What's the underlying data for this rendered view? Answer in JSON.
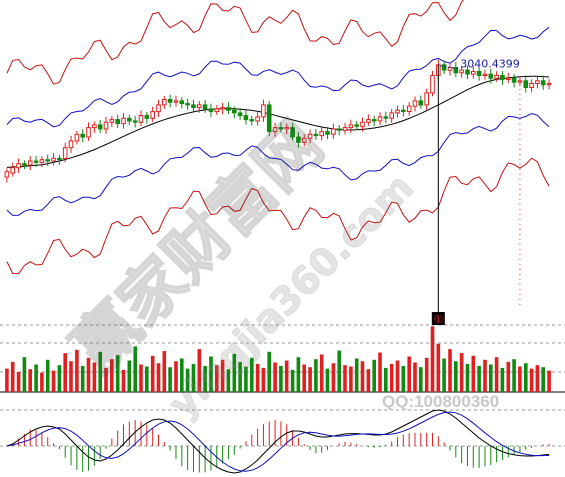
{
  "chart_data": {
    "type": "candlestick",
    "annotation": {
      "price_label": "3040.4399",
      "marker": "①"
    },
    "watermark": {
      "brand": "赢家财富网",
      "domain": "yingjia360.com",
      "contact": "QQ:100800360"
    },
    "colors": {
      "up": "#e02020",
      "down": "#108a10",
      "mid_band": "#000000",
      "inner_band": "#1010c8",
      "outer_band": "#c81010",
      "macd_dif": "#000000",
      "macd_dea": "#1010c8",
      "grid": "#9a9a9a",
      "label": "#1a1aa8"
    },
    "series": [
      {
        "o": 3.2,
        "c": 3.6
      },
      {
        "o": 3.5,
        "c": 3.9
      },
      {
        "o": 3.9,
        "c": 4.2
      },
      {
        "o": 4.2,
        "c": 4.1
      },
      {
        "o": 4.1,
        "c": 4.4
      },
      {
        "o": 4.4,
        "c": 4.3
      },
      {
        "o": 4.3,
        "c": 4.5
      },
      {
        "o": 4.5,
        "c": 4.4
      },
      {
        "o": 4.4,
        "c": 4.6
      },
      {
        "o": 4.6,
        "c": 4.5
      },
      {
        "o": 4.6,
        "c": 5.4
      },
      {
        "o": 5.4,
        "c": 5.9
      },
      {
        "o": 5.9,
        "c": 6.4
      },
      {
        "o": 6.4,
        "c": 6.2
      },
      {
        "o": 6.2,
        "c": 6.9
      },
      {
        "o": 6.9,
        "c": 7.1
      },
      {
        "o": 7.1,
        "c": 6.8
      },
      {
        "o": 6.8,
        "c": 7.3
      },
      {
        "o": 7.3,
        "c": 7.5
      },
      {
        "o": 7.5,
        "c": 7.2
      },
      {
        "o": 7.2,
        "c": 7.6
      },
      {
        "o": 7.6,
        "c": 7.4
      },
      {
        "o": 7.4,
        "c": 7.3
      },
      {
        "o": 7.3,
        "c": 7.8
      },
      {
        "o": 7.8,
        "c": 7.6
      },
      {
        "o": 7.6,
        "c": 8.1
      },
      {
        "o": 8.1,
        "c": 8.6
      },
      {
        "o": 8.6,
        "c": 9.0
      },
      {
        "o": 9.0,
        "c": 8.8
      },
      {
        "o": 8.8,
        "c": 8.9
      },
      {
        "o": 8.9,
        "c": 8.7
      },
      {
        "o": 8.7,
        "c": 8.6
      },
      {
        "o": 8.6,
        "c": 8.4
      },
      {
        "o": 8.4,
        "c": 8.6
      },
      {
        "o": 8.6,
        "c": 8.3
      },
      {
        "o": 8.3,
        "c": 8.1
      },
      {
        "o": 8.1,
        "c": 8.3
      },
      {
        "o": 8.3,
        "c": 8.4
      },
      {
        "o": 8.4,
        "c": 8.2
      },
      {
        "o": 8.2,
        "c": 8.0
      },
      {
        "o": 8.0,
        "c": 7.8
      },
      {
        "o": 7.8,
        "c": 7.5
      },
      {
        "o": 7.5,
        "c": 7.4
      },
      {
        "o": 7.4,
        "c": 7.7
      },
      {
        "o": 7.7,
        "c": 8.6
      },
      {
        "o": 8.6,
        "c": 6.6
      },
      {
        "o": 6.6,
        "c": 6.9
      },
      {
        "o": 6.9,
        "c": 6.8
      },
      {
        "o": 6.8,
        "c": 6.9
      },
      {
        "o": 6.9,
        "c": 6.2
      },
      {
        "o": 6.2,
        "c": 5.8
      },
      {
        "o": 5.8,
        "c": 6.1
      },
      {
        "o": 6.1,
        "c": 6.4
      },
      {
        "o": 6.4,
        "c": 6.3
      },
      {
        "o": 6.3,
        "c": 6.6
      },
      {
        "o": 6.6,
        "c": 6.4
      },
      {
        "o": 6.4,
        "c": 6.8
      },
      {
        "o": 6.8,
        "c": 6.7
      },
      {
        "o": 6.7,
        "c": 6.9
      },
      {
        "o": 6.9,
        "c": 7.1
      },
      {
        "o": 7.1,
        "c": 7.0
      },
      {
        "o": 7.0,
        "c": 7.3
      },
      {
        "o": 7.3,
        "c": 7.5
      },
      {
        "o": 7.5,
        "c": 7.4
      },
      {
        "o": 7.4,
        "c": 7.7
      },
      {
        "o": 7.7,
        "c": 7.6
      },
      {
        "o": 7.6,
        "c": 8.0
      },
      {
        "o": 8.0,
        "c": 8.2
      },
      {
        "o": 8.2,
        "c": 8.1
      },
      {
        "o": 8.1,
        "c": 8.5
      },
      {
        "o": 8.5,
        "c": 8.9
      },
      {
        "o": 8.9,
        "c": 8.6
      },
      {
        "o": 8.6,
        "c": 9.5
      },
      {
        "o": 9.5,
        "c": 10.8
      },
      {
        "o": 10.8,
        "c": 11.6
      },
      {
        "o": 11.6,
        "c": 11.2
      },
      {
        "o": 11.2,
        "c": 11.4
      },
      {
        "o": 11.4,
        "c": 11.0
      },
      {
        "o": 11.0,
        "c": 11.2
      },
      {
        "o": 11.2,
        "c": 10.9
      },
      {
        "o": 10.9,
        "c": 11.1
      },
      {
        "o": 11.1,
        "c": 10.8
      },
      {
        "o": 10.8,
        "c": 10.9
      },
      {
        "o": 10.9,
        "c": 10.6
      },
      {
        "o": 10.6,
        "c": 10.8
      },
      {
        "o": 10.8,
        "c": 10.5
      },
      {
        "o": 10.5,
        "c": 10.6
      },
      {
        "o": 10.6,
        "c": 10.3
      },
      {
        "o": 10.3,
        "c": 10.4
      },
      {
        "o": 10.4,
        "c": 9.9
      },
      {
        "o": 9.9,
        "c": 10.2
      },
      {
        "o": 10.2,
        "c": 10.4
      },
      {
        "o": 10.4,
        "c": 10.1
      },
      {
        "o": 10.1,
        "c": 10.2
      }
    ],
    "volume": [
      3.5,
      4.5,
      3.0,
      5.2,
      3.4,
      4.1,
      2.9,
      4.8,
      3.2,
      4.0,
      5.8,
      4.6,
      6.3,
      3.9,
      5.1,
      4.4,
      6.0,
      3.6,
      4.9,
      5.5,
      3.3,
      4.7,
      6.8,
      4.1,
      3.8,
      5.4,
      4.3,
      6.1,
      3.7,
      4.6,
      5.0,
      3.5,
      4.2,
      6.4,
      3.9,
      5.3,
      4.0,
      4.8,
      3.4,
      5.7,
      4.5,
      3.8,
      5.1,
      4.2,
      3.6,
      6.0,
      4.4,
      3.9,
      4.7,
      3.3,
      5.2,
      4.1,
      3.7,
      4.9,
      5.6,
      3.5,
      4.3,
      6.2,
      4.0,
      3.8,
      5.0,
      4.6,
      3.4,
      4.8,
      5.9,
      3.6,
      4.2,
      4.7,
      3.9,
      5.3,
      4.4,
      3.7,
      5.1,
      9.8,
      7.2,
      5.0,
      6.4,
      4.6,
      5.8,
      4.2,
      5.4,
      3.9,
      4.8,
      4.1,
      5.2,
      3.6,
      4.5,
      4.9,
      3.8,
      4.3,
      3.5,
      4.0,
      3.7,
      3.2
    ],
    "macd_dif": [
      0.0,
      0.1,
      0.3,
      0.5,
      0.7,
      0.85,
      0.95,
      1.0,
      0.95,
      0.85,
      0.6,
      0.3,
      0.0,
      -0.3,
      -0.55,
      -0.7,
      -0.75,
      -0.65,
      -0.45,
      -0.2,
      0.1,
      0.4,
      0.7,
      0.95,
      1.15,
      1.3,
      1.35,
      1.3,
      1.15,
      0.9,
      0.6,
      0.3,
      0.0,
      -0.3,
      -0.6,
      -0.85,
      -1.05,
      -1.2,
      -1.3,
      -1.35,
      -1.3,
      -1.15,
      -0.95,
      -0.7,
      -0.4,
      -0.1,
      0.2,
      0.45,
      0.65,
      0.75,
      0.75,
      0.7,
      0.6,
      0.5,
      0.45,
      0.45,
      0.5,
      0.55,
      0.6,
      0.62,
      0.62,
      0.6,
      0.58,
      0.55,
      0.55,
      0.6,
      0.7,
      0.85,
      1.0,
      1.15,
      1.3,
      1.45,
      1.6,
      1.75,
      1.8,
      1.75,
      1.6,
      1.4,
      1.15,
      0.9,
      0.65,
      0.4,
      0.2,
      0.0,
      -0.15,
      -0.28,
      -0.38,
      -0.44,
      -0.48,
      -0.5,
      -0.5,
      -0.48,
      -0.45,
      -0.42
    ]
  }
}
